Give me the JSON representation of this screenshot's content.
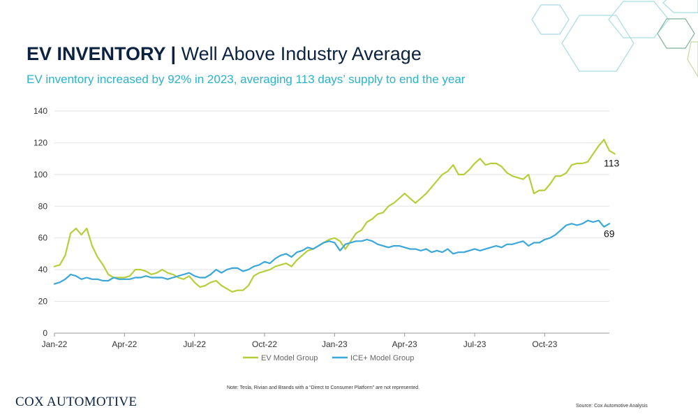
{
  "header": {
    "title_bold": "EV INVENTORY |",
    "title_rest": " Well Above Industry Average",
    "subtitle": "EV inventory increased by 92% in 2023, averaging 113 days’ supply to end the year"
  },
  "chart_data": {
    "type": "line",
    "title": "",
    "xlabel": "",
    "ylabel": "",
    "ylim": [
      0,
      140
    ],
    "yticks": [
      0,
      20,
      40,
      60,
      80,
      100,
      120,
      140
    ],
    "xlim": [
      0,
      103
    ],
    "xticks": [
      {
        "label": "Jan-22",
        "at": 0
      },
      {
        "label": "Apr-22",
        "at": 13
      },
      {
        "label": "Jul-22",
        "at": 26
      },
      {
        "label": "Oct-22",
        "at": 39
      },
      {
        "label": "Jan-23",
        "at": 52
      },
      {
        "label": "Apr-23",
        "at": 65
      },
      {
        "label": "Jul-23",
        "at": 78
      },
      {
        "label": "Oct-23",
        "at": 91
      }
    ],
    "grid": true,
    "legend_position": "bottom",
    "series": [
      {
        "name": "EV Model Group",
        "color": "#b5cf3b",
        "end_label": "113",
        "values": [
          42,
          43,
          49,
          63,
          66,
          62,
          66,
          55,
          48,
          43,
          37,
          35,
          35,
          35,
          36,
          40,
          40,
          39,
          37,
          38,
          40,
          38,
          37,
          35,
          34,
          36,
          32,
          29,
          30,
          32,
          33,
          30,
          28,
          26,
          27,
          27,
          30,
          36,
          38,
          39,
          40,
          42,
          43,
          44,
          42,
          46,
          49,
          52,
          53,
          55,
          57,
          59,
          60,
          58,
          53,
          58,
          63,
          65,
          70,
          72,
          75,
          76,
          80,
          82,
          85,
          88,
          85,
          82,
          85,
          88,
          92,
          96,
          100,
          102,
          106,
          100,
          100,
          103,
          107,
          110,
          106,
          107,
          107,
          105,
          101,
          99,
          98,
          97,
          100,
          88,
          90,
          90,
          94,
          99,
          99,
          101,
          106,
          107,
          107,
          108,
          113,
          118,
          122,
          115,
          113
        ]
      },
      {
        "name": "ICE+ Model Group",
        "color": "#3ba7d8",
        "end_label": "69",
        "values": [
          31,
          32,
          34,
          37,
          36,
          34,
          35,
          34,
          34,
          33,
          33,
          35,
          34,
          34,
          34,
          35,
          35,
          36,
          35,
          35,
          35,
          34,
          35,
          36,
          37,
          38,
          36,
          35,
          35,
          37,
          40,
          38,
          40,
          41,
          41,
          39,
          40,
          42,
          43,
          45,
          44,
          47,
          49,
          50,
          48,
          51,
          52,
          54,
          53,
          55,
          57,
          58,
          57,
          52,
          56,
          57,
          58,
          58,
          59,
          58,
          56,
          55,
          54,
          55,
          55,
          54,
          53,
          53,
          52,
          53,
          51,
          52,
          51,
          53,
          50,
          51,
          51,
          52,
          53,
          52,
          53,
          54,
          55,
          54,
          56,
          56,
          57,
          58,
          55,
          57,
          57,
          59,
          60,
          62,
          65,
          68,
          69,
          68,
          69,
          71,
          70,
          71,
          67,
          69
        ]
      }
    ]
  },
  "footer": {
    "note": "Note: Tesla, Rivian and Brands with a “Direct to Consumer Platform” are not represented.",
    "logo": "COX AUTOMOTIVE",
    "source": "Source: Cox Automotive Analysis"
  }
}
